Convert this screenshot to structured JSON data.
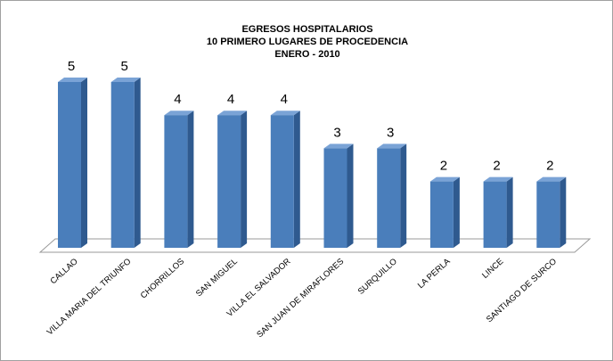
{
  "chart_data": {
    "type": "bar3d",
    "title": [
      "EGRESOS HOSPITALARIOS",
      "10 PRIMERO LUGARES DE PROCEDENCIA",
      "ENERO - 2010"
    ],
    "categories": [
      "CALLAO",
      "VILLA MARIA DEL TRIUNFO",
      "CHORRILLOS",
      "SAN MIGUEL",
      "VILLA EL SALVADOR",
      "SAN JUAN DE MIRAFLORES",
      "SURQUILLO",
      "LA PERLA",
      "LINCE",
      "SANTIAGO DE SURCO"
    ],
    "values": [
      5,
      5,
      4,
      4,
      4,
      3,
      3,
      2,
      2,
      2
    ],
    "color": "#4a7ebb"
  }
}
